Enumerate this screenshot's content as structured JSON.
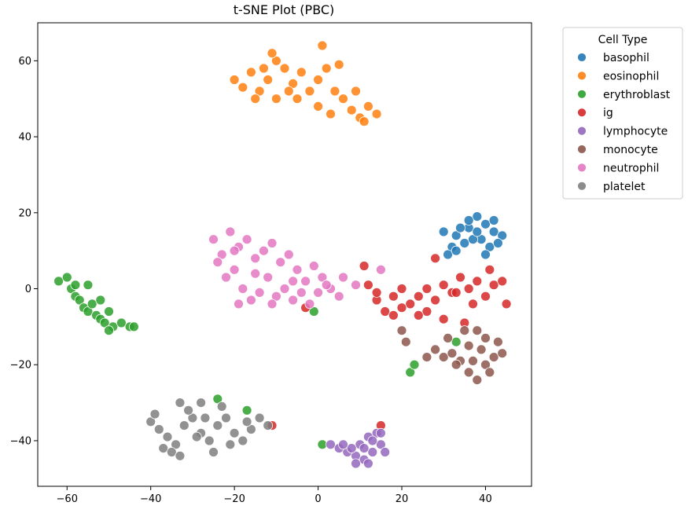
{
  "chart_data": {
    "type": "scatter",
    "title": "t-SNE Plot (PBC)",
    "xlabel": "",
    "ylabel": "",
    "xlim": [
      -67,
      51
    ],
    "ylim": [
      -52,
      70
    ],
    "xticks": [
      -60,
      -40,
      -20,
      0,
      20,
      40
    ],
    "yticks": [
      -40,
      -20,
      0,
      20,
      40,
      60
    ],
    "xtick_labels": [
      "−60",
      "−40",
      "−20",
      "0",
      "20",
      "40"
    ],
    "ytick_labels": [
      "−40",
      "−20",
      "0",
      "20",
      "40",
      "60"
    ],
    "legend": {
      "title": "Cell Type",
      "placement": "outside-upper-right"
    },
    "series": [
      {
        "name": "basophil",
        "color": "#1f77b4",
        "points": [
          [
            30,
            15
          ],
          [
            33,
            14
          ],
          [
            36,
            16
          ],
          [
            38,
            19
          ],
          [
            40,
            17
          ],
          [
            42,
            15
          ],
          [
            44,
            14
          ],
          [
            35,
            12
          ],
          [
            32,
            11
          ],
          [
            39,
            13
          ],
          [
            41,
            11
          ],
          [
            37,
            13
          ],
          [
            34,
            16
          ],
          [
            43,
            12
          ],
          [
            31,
            9
          ],
          [
            40,
            9
          ],
          [
            36,
            18
          ],
          [
            38,
            15
          ],
          [
            33,
            10
          ],
          [
            42,
            18
          ]
        ]
      },
      {
        "name": "eosinophil",
        "color": "#ff7f0e",
        "points": [
          [
            -20,
            55
          ],
          [
            -18,
            53
          ],
          [
            -16,
            57
          ],
          [
            -14,
            52
          ],
          [
            -12,
            55
          ],
          [
            -10,
            60
          ],
          [
            -8,
            58
          ],
          [
            -6,
            54
          ],
          [
            -4,
            57
          ],
          [
            -2,
            52
          ],
          [
            0,
            55
          ],
          [
            2,
            58
          ],
          [
            4,
            52
          ],
          [
            6,
            50
          ],
          [
            8,
            47
          ],
          [
            10,
            45
          ],
          [
            12,
            48
          ],
          [
            14,
            46
          ],
          [
            -15,
            50
          ],
          [
            -10,
            50
          ],
          [
            -5,
            50
          ],
          [
            0,
            48
          ],
          [
            3,
            46
          ],
          [
            9,
            52
          ],
          [
            11,
            44
          ],
          [
            1,
            64
          ],
          [
            5,
            59
          ],
          [
            -11,
            62
          ],
          [
            -7,
            52
          ],
          [
            -13,
            58
          ]
        ]
      },
      {
        "name": "erythroblast",
        "color": "#2ca02c",
        "points": [
          [
            -62,
            2
          ],
          [
            -60,
            3
          ],
          [
            -59,
            0
          ],
          [
            -58,
            -2
          ],
          [
            -57,
            -3
          ],
          [
            -56,
            -5
          ],
          [
            -55,
            -6
          ],
          [
            -54,
            -4
          ],
          [
            -53,
            -7
          ],
          [
            -52,
            -8
          ],
          [
            -51,
            -9
          ],
          [
            -50,
            -6
          ],
          [
            -49,
            -10
          ],
          [
            -47,
            -9
          ],
          [
            -45,
            -10
          ],
          [
            -55,
            1
          ],
          [
            -58,
            1
          ],
          [
            -52,
            -3
          ],
          [
            -50,
            -11
          ],
          [
            -44,
            -10
          ],
          [
            -24,
            -29
          ],
          [
            -17,
            -32
          ],
          [
            1,
            -41
          ],
          [
            33,
            -14
          ],
          [
            22,
            -22
          ],
          [
            23,
            -20
          ],
          [
            -1,
            -6
          ]
        ]
      },
      {
        "name": "ig",
        "color": "#d62728",
        "points": [
          [
            12,
            1
          ],
          [
            14,
            -3
          ],
          [
            16,
            -6
          ],
          [
            18,
            -2
          ],
          [
            20,
            0
          ],
          [
            22,
            -4
          ],
          [
            24,
            -2
          ],
          [
            26,
            -6
          ],
          [
            28,
            -3
          ],
          [
            30,
            1
          ],
          [
            32,
            -1
          ],
          [
            34,
            3
          ],
          [
            36,
            0
          ],
          [
            38,
            2
          ],
          [
            40,
            -2
          ],
          [
            42,
            1
          ],
          [
            44,
            2
          ],
          [
            45,
            -4
          ],
          [
            30,
            -8
          ],
          [
            24,
            -7
          ],
          [
            18,
            -7
          ],
          [
            14,
            -1
          ],
          [
            11,
            6
          ],
          [
            28,
            8
          ],
          [
            33,
            -1
          ],
          [
            37,
            -4
          ],
          [
            41,
            5
          ],
          [
            26,
            0
          ],
          [
            20,
            -5
          ],
          [
            35,
            -9
          ],
          [
            -11,
            -36
          ],
          [
            15,
            -36
          ],
          [
            -3,
            -5
          ]
        ]
      },
      {
        "name": "lymphocyte",
        "color": "#9467bd",
        "points": [
          [
            3,
            -41
          ],
          [
            5,
            -42
          ],
          [
            7,
            -43
          ],
          [
            9,
            -44
          ],
          [
            11,
            -45
          ],
          [
            13,
            -43
          ],
          [
            15,
            -41
          ],
          [
            14,
            -38
          ],
          [
            12,
            -39
          ],
          [
            10,
            -41
          ],
          [
            8,
            -42
          ],
          [
            12,
            -46
          ],
          [
            16,
            -43
          ],
          [
            6,
            -41
          ],
          [
            11,
            -42
          ],
          [
            13,
            -40
          ],
          [
            15,
            -38
          ],
          [
            9,
            -46
          ]
        ]
      },
      {
        "name": "monocyte",
        "color": "#8c564b",
        "points": [
          [
            28,
            -16
          ],
          [
            30,
            -18
          ],
          [
            32,
            -17
          ],
          [
            34,
            -19
          ],
          [
            36,
            -22
          ],
          [
            38,
            -24
          ],
          [
            40,
            -20
          ],
          [
            42,
            -18
          ],
          [
            44,
            -17
          ],
          [
            38,
            -11
          ],
          [
            40,
            -13
          ],
          [
            36,
            -15
          ],
          [
            33,
            -20
          ],
          [
            39,
            -16
          ],
          [
            41,
            -22
          ],
          [
            35,
            -11
          ],
          [
            26,
            -18
          ],
          [
            21,
            -14
          ],
          [
            20,
            -11
          ],
          [
            37,
            -19
          ],
          [
            43,
            -14
          ],
          [
            31,
            -13
          ]
        ]
      },
      {
        "name": "neutrophil",
        "color": "#e377c2",
        "points": [
          [
            -25,
            13
          ],
          [
            -23,
            9
          ],
          [
            -21,
            15
          ],
          [
            -19,
            11
          ],
          [
            -17,
            13
          ],
          [
            -15,
            8
          ],
          [
            -13,
            10
          ],
          [
            -11,
            12
          ],
          [
            -9,
            7
          ],
          [
            -7,
            9
          ],
          [
            -5,
            5
          ],
          [
            -3,
            2
          ],
          [
            -1,
            6
          ],
          [
            1,
            3
          ],
          [
            3,
            0
          ],
          [
            5,
            -2
          ],
          [
            -20,
            5
          ],
          [
            -18,
            0
          ],
          [
            -16,
            -3
          ],
          [
            -14,
            -1
          ],
          [
            -12,
            3
          ],
          [
            -10,
            -2
          ],
          [
            -8,
            0
          ],
          [
            -6,
            -3
          ],
          [
            -4,
            -1
          ],
          [
            -2,
            -4
          ],
          [
            0,
            -1
          ],
          [
            6,
            3
          ],
          [
            9,
            1
          ],
          [
            15,
            5
          ],
          [
            -22,
            3
          ],
          [
            -19,
            -4
          ],
          [
            -15,
            4
          ],
          [
            -11,
            -4
          ],
          [
            -6,
            2
          ],
          [
            -24,
            7
          ],
          [
            -20,
            10
          ],
          [
            2,
            1
          ]
        ]
      },
      {
        "name": "platelet",
        "color": "#7f7f7f",
        "points": [
          [
            -40,
            -35
          ],
          [
            -38,
            -37
          ],
          [
            -36,
            -39
          ],
          [
            -34,
            -41
          ],
          [
            -32,
            -36
          ],
          [
            -30,
            -34
          ],
          [
            -28,
            -38
          ],
          [
            -26,
            -40
          ],
          [
            -24,
            -36
          ],
          [
            -22,
            -34
          ],
          [
            -20,
            -38
          ],
          [
            -18,
            -40
          ],
          [
            -16,
            -37
          ],
          [
            -14,
            -34
          ],
          [
            -12,
            -36
          ],
          [
            -33,
            -30
          ],
          [
            -31,
            -32
          ],
          [
            -28,
            -30
          ],
          [
            -37,
            -42
          ],
          [
            -35,
            -43
          ],
          [
            -25,
            -43
          ],
          [
            -21,
            -41
          ],
          [
            -29,
            -39
          ],
          [
            -23,
            -31
          ],
          [
            -39,
            -33
          ],
          [
            -17,
            -35
          ],
          [
            -27,
            -34
          ],
          [
            -33,
            -44
          ]
        ]
      }
    ]
  }
}
